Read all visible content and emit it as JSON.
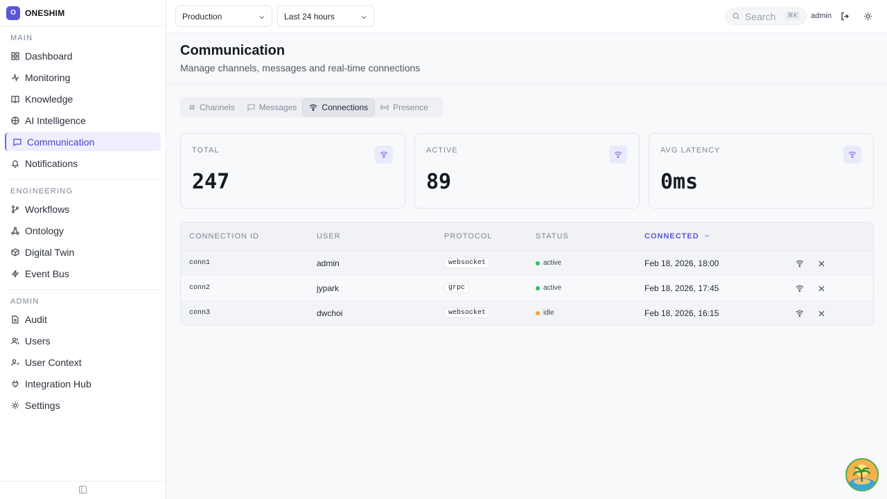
{
  "brand": {
    "logo_letter": "O",
    "name": "ONESHIM"
  },
  "sidebar": {
    "sections": [
      {
        "title": "MAIN",
        "items": [
          {
            "label": "Dashboard",
            "icon": "grid-icon"
          },
          {
            "label": "Monitoring",
            "icon": "activity-icon"
          },
          {
            "label": "Knowledge",
            "icon": "book-icon"
          },
          {
            "label": "AI Intelligence",
            "icon": "brain-icon"
          },
          {
            "label": "Communication",
            "icon": "chat-icon",
            "active": true
          },
          {
            "label": "Notifications",
            "icon": "bell-icon"
          }
        ]
      },
      {
        "title": "ENGINEERING",
        "items": [
          {
            "label": "Workflows",
            "icon": "branch-icon"
          },
          {
            "label": "Ontology",
            "icon": "network-icon"
          },
          {
            "label": "Digital Twin",
            "icon": "cube-icon"
          },
          {
            "label": "Event Bus",
            "icon": "bolt-icon"
          }
        ]
      },
      {
        "title": "ADMIN",
        "items": [
          {
            "label": "Audit",
            "icon": "file-icon"
          },
          {
            "label": "Users",
            "icon": "users-icon"
          },
          {
            "label": "User Context",
            "icon": "user-context-icon"
          },
          {
            "label": "Integration Hub",
            "icon": "plug-icon"
          },
          {
            "label": "Settings",
            "icon": "gear-icon"
          }
        ]
      }
    ]
  },
  "topbar": {
    "environment": "Production",
    "time_range": "Last 24 hours",
    "search_placeholder": "Search",
    "search_shortcut": "⌘K",
    "user": "admin"
  },
  "page": {
    "title": "Communication",
    "subtitle": "Manage channels, messages and real-time connections"
  },
  "tabs": [
    {
      "label": "Channels",
      "icon": "hash-icon"
    },
    {
      "label": "Messages",
      "icon": "message-icon"
    },
    {
      "label": "Connections",
      "icon": "wifi-icon",
      "active": true
    },
    {
      "label": "Presence",
      "icon": "radio-icon"
    }
  ],
  "stats": [
    {
      "label": "TOTAL",
      "value": "247"
    },
    {
      "label": "ACTIVE",
      "value": "89"
    },
    {
      "label": "AVG LATENCY",
      "value": "0ms"
    }
  ],
  "table": {
    "columns": [
      "CONNECTION ID",
      "USER",
      "PROTOCOL",
      "STATUS",
      "CONNECTED"
    ],
    "sorted_column": "CONNECTED",
    "rows": [
      {
        "id": "conn1",
        "user": "admin",
        "protocol": "websocket",
        "status": "active",
        "connected": "Feb 18, 2026, 18:00"
      },
      {
        "id": "conn2",
        "user": "jypark",
        "protocol": "grpc",
        "status": "active",
        "connected": "Feb 18, 2026, 17:45"
      },
      {
        "id": "conn3",
        "user": "dwchoi",
        "protocol": "websocket",
        "status": "idle",
        "connected": "Feb 18, 2026, 16:15"
      }
    ]
  },
  "colors": {
    "accent": "#5b57d9",
    "active_status": "#22c55e",
    "idle_status": "#f5a524"
  }
}
